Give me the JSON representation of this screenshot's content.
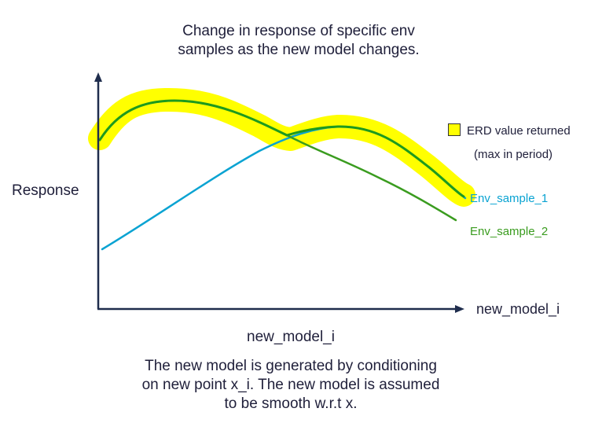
{
  "title_lines": [
    "Change in response of specific env",
    "samples as the new model changes."
  ],
  "y_axis_label": "Response",
  "x_axis_label": "new_model_i",
  "x_center_label": "new_model_i",
  "caption_lines": [
    "The new model is generated by conditioning",
    "on new point x_i. The new model is assumed",
    "to be smooth w.r.t x."
  ],
  "legend": {
    "highlight_label": "ERD value returned",
    "highlight_sublabel": "(max in period)",
    "highlight_color": "#ffff00"
  },
  "curves": {
    "env_sample_1": {
      "name": "Env_sample_1",
      "color": "#0aa3d2"
    },
    "env_sample_2": {
      "name": "Env_sample_2",
      "color": "#3a9c1f"
    },
    "max_envelope": {
      "color": "#1e9a1e"
    }
  },
  "colors": {
    "axis": "#1f2d4d",
    "text": "#1f1f3a"
  }
}
